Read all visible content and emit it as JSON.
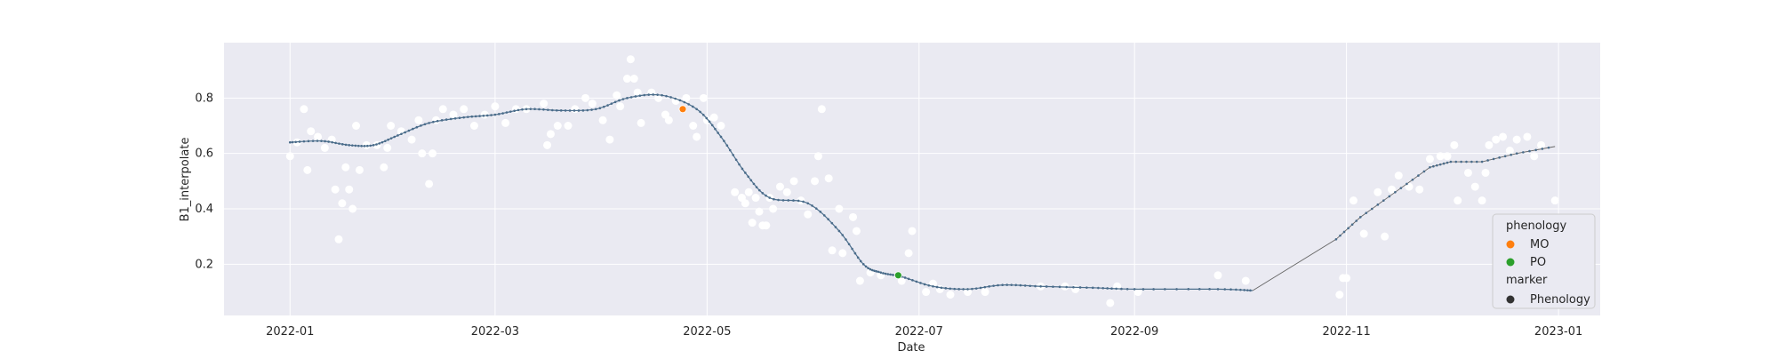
{
  "chart_data": {
    "type": "scatter",
    "title": "",
    "xlabel": "Date",
    "ylabel": "B1_interpolate",
    "xlim": [
      "2021-12-13",
      "2023-01-13"
    ],
    "ylim": [
      0.015,
      1.0
    ],
    "x_ticks": [
      "2022-01-01",
      "2022-03-01",
      "2022-05-01",
      "2022-07-01",
      "2022-09-01",
      "2022-11-01",
      "2023-01-01"
    ],
    "x_tick_labels": [
      "2022-01",
      "2022-03",
      "2022-05",
      "2022-07",
      "2022-09",
      "2022-11",
      "2023-01"
    ],
    "y_ticks": [
      0.2,
      0.4,
      0.6,
      0.8
    ],
    "y_tick_labels": [
      "0.2",
      "0.4",
      "0.6",
      "0.8"
    ],
    "grid": true,
    "legend_position": "bottom-right",
    "colors": {
      "background": "#eaeaf2",
      "grid": "#ffffff",
      "observations": "#ffffff",
      "curve": "#4c6e8c",
      "MO": "#ff7f0e",
      "PO": "#2ca02c",
      "marker": "#333333"
    },
    "observations": [
      [
        "2022-01-01",
        0.59
      ],
      [
        "2022-01-03",
        0.64
      ],
      [
        "2022-01-05",
        0.76
      ],
      [
        "2022-01-06",
        0.54
      ],
      [
        "2022-01-07",
        0.68
      ],
      [
        "2022-01-09",
        0.66
      ],
      [
        "2022-01-11",
        0.62
      ],
      [
        "2022-01-13",
        0.65
      ],
      [
        "2022-01-14",
        0.47
      ],
      [
        "2022-01-15",
        0.29
      ],
      [
        "2022-01-16",
        0.42
      ],
      [
        "2022-01-17",
        0.55
      ],
      [
        "2022-01-18",
        0.47
      ],
      [
        "2022-01-19",
        0.4
      ],
      [
        "2022-01-20",
        0.7
      ],
      [
        "2022-01-21",
        0.54
      ],
      [
        "2022-01-23",
        0.63
      ],
      [
        "2022-01-26",
        0.63
      ],
      [
        "2022-01-28",
        0.55
      ],
      [
        "2022-01-29",
        0.62
      ],
      [
        "2022-01-30",
        0.7
      ],
      [
        "2022-02-02",
        0.68
      ],
      [
        "2022-02-05",
        0.65
      ],
      [
        "2022-02-07",
        0.72
      ],
      [
        "2022-02-08",
        0.6
      ],
      [
        "2022-02-10",
        0.49
      ],
      [
        "2022-02-11",
        0.6
      ],
      [
        "2022-02-12",
        0.72
      ],
      [
        "2022-02-14",
        0.76
      ],
      [
        "2022-02-17",
        0.74
      ],
      [
        "2022-02-20",
        0.76
      ],
      [
        "2022-02-23",
        0.7
      ],
      [
        "2022-02-26",
        0.74
      ],
      [
        "2022-03-01",
        0.77
      ],
      [
        "2022-03-04",
        0.71
      ],
      [
        "2022-03-07",
        0.76
      ],
      [
        "2022-03-10",
        0.76
      ],
      [
        "2022-03-15",
        0.78
      ],
      [
        "2022-03-16",
        0.63
      ],
      [
        "2022-03-17",
        0.67
      ],
      [
        "2022-03-19",
        0.7
      ],
      [
        "2022-03-22",
        0.7
      ],
      [
        "2022-03-24",
        0.76
      ],
      [
        "2022-03-27",
        0.8
      ],
      [
        "2022-03-29",
        0.78
      ],
      [
        "2022-04-01",
        0.72
      ],
      [
        "2022-04-03",
        0.65
      ],
      [
        "2022-04-05",
        0.81
      ],
      [
        "2022-04-06",
        0.77
      ],
      [
        "2022-04-08",
        0.87
      ],
      [
        "2022-04-09",
        0.94
      ],
      [
        "2022-04-10",
        0.87
      ],
      [
        "2022-04-11",
        0.82
      ],
      [
        "2022-04-12",
        0.71
      ],
      [
        "2022-04-15",
        0.82
      ],
      [
        "2022-04-17",
        0.8
      ],
      [
        "2022-04-19",
        0.74
      ],
      [
        "2022-04-20",
        0.72
      ],
      [
        "2022-04-22",
        0.79
      ],
      [
        "2022-04-25",
        0.8
      ],
      [
        "2022-04-27",
        0.7
      ],
      [
        "2022-04-28",
        0.66
      ],
      [
        "2022-04-30",
        0.8
      ],
      [
        "2022-05-01",
        0.72
      ],
      [
        "2022-05-03",
        0.73
      ],
      [
        "2022-05-05",
        0.7
      ],
      [
        "2022-05-09",
        0.46
      ],
      [
        "2022-05-11",
        0.44
      ],
      [
        "2022-05-12",
        0.42
      ],
      [
        "2022-05-13",
        0.46
      ],
      [
        "2022-05-14",
        0.35
      ],
      [
        "2022-05-15",
        0.44
      ],
      [
        "2022-05-16",
        0.39
      ],
      [
        "2022-05-17",
        0.34
      ],
      [
        "2022-05-18",
        0.34
      ],
      [
        "2022-05-19",
        0.44
      ],
      [
        "2022-05-20",
        0.4
      ],
      [
        "2022-05-22",
        0.48
      ],
      [
        "2022-05-24",
        0.46
      ],
      [
        "2022-05-26",
        0.5
      ],
      [
        "2022-05-28",
        0.43
      ],
      [
        "2022-05-30",
        0.38
      ],
      [
        "2022-06-01",
        0.5
      ],
      [
        "2022-06-02",
        0.59
      ],
      [
        "2022-06-03",
        0.76
      ],
      [
        "2022-06-05",
        0.51
      ],
      [
        "2022-06-06",
        0.25
      ],
      [
        "2022-06-08",
        0.4
      ],
      [
        "2022-06-09",
        0.24
      ],
      [
        "2022-06-12",
        0.37
      ],
      [
        "2022-06-13",
        0.32
      ],
      [
        "2022-06-14",
        0.14
      ],
      [
        "2022-06-17",
        0.17
      ],
      [
        "2022-06-20",
        0.16
      ],
      [
        "2022-06-26",
        0.14
      ],
      [
        "2022-06-28",
        0.24
      ],
      [
        "2022-06-29",
        0.32
      ],
      [
        "2022-07-03",
        0.1
      ],
      [
        "2022-07-05",
        0.13
      ],
      [
        "2022-07-07",
        0.11
      ],
      [
        "2022-07-10",
        0.09
      ],
      [
        "2022-07-15",
        0.1
      ],
      [
        "2022-07-20",
        0.1
      ],
      [
        "2022-08-05",
        0.12
      ],
      [
        "2022-08-12",
        0.12
      ],
      [
        "2022-08-15",
        0.11
      ],
      [
        "2022-08-25",
        0.06
      ],
      [
        "2022-08-27",
        0.12
      ],
      [
        "2022-09-02",
        0.1
      ],
      [
        "2022-09-25",
        0.16
      ],
      [
        "2022-10-03",
        0.14
      ],
      [
        "2022-10-30",
        0.09
      ],
      [
        "2022-10-31",
        0.15
      ],
      [
        "2022-11-01",
        0.15
      ],
      [
        "2022-11-03",
        0.43
      ],
      [
        "2022-11-06",
        0.31
      ],
      [
        "2022-11-10",
        0.46
      ],
      [
        "2022-11-12",
        0.3
      ],
      [
        "2022-11-14",
        0.47
      ],
      [
        "2022-11-16",
        0.52
      ],
      [
        "2022-11-19",
        0.48
      ],
      [
        "2022-11-22",
        0.47
      ],
      [
        "2022-11-25",
        0.58
      ],
      [
        "2022-11-28",
        0.59
      ],
      [
        "2022-11-30",
        0.59
      ],
      [
        "2022-12-02",
        0.63
      ],
      [
        "2022-12-03",
        0.43
      ],
      [
        "2022-12-06",
        0.53
      ],
      [
        "2022-12-08",
        0.48
      ],
      [
        "2022-12-10",
        0.43
      ],
      [
        "2022-12-11",
        0.53
      ],
      [
        "2022-12-12",
        0.63
      ],
      [
        "2022-12-14",
        0.65
      ],
      [
        "2022-12-16",
        0.66
      ],
      [
        "2022-12-18",
        0.61
      ],
      [
        "2022-12-20",
        0.65
      ],
      [
        "2022-12-23",
        0.66
      ],
      [
        "2022-12-25",
        0.59
      ],
      [
        "2022-12-27",
        0.63
      ],
      [
        "2022-12-31",
        0.43
      ]
    ],
    "smoothed_knots": [
      [
        "2022-01-01",
        0.64
      ],
      [
        "2022-01-10",
        0.645
      ],
      [
        "2022-01-18",
        0.63
      ],
      [
        "2022-01-25",
        0.63
      ],
      [
        "2022-02-01",
        0.665
      ],
      [
        "2022-02-10",
        0.71
      ],
      [
        "2022-02-20",
        0.73
      ],
      [
        "2022-03-01",
        0.74
      ],
      [
        "2022-03-10",
        0.76
      ],
      [
        "2022-03-20",
        0.755
      ],
      [
        "2022-03-30",
        0.76
      ],
      [
        "2022-04-08",
        0.8
      ],
      [
        "2022-04-18",
        0.81
      ],
      [
        "2022-04-28",
        0.76
      ],
      [
        "2022-05-05",
        0.66
      ],
      [
        "2022-05-12",
        0.53
      ],
      [
        "2022-05-19",
        0.44
      ],
      [
        "2022-05-30",
        0.42
      ],
      [
        "2022-06-08",
        0.32
      ],
      [
        "2022-06-15",
        0.2
      ],
      [
        "2022-06-20",
        0.17
      ],
      [
        "2022-06-26",
        0.155
      ],
      [
        "2022-07-05",
        0.12
      ],
      [
        "2022-07-15",
        0.11
      ],
      [
        "2022-07-25",
        0.125
      ],
      [
        "2022-08-05",
        0.12
      ],
      [
        "2022-08-20",
        0.115
      ],
      [
        "2022-09-01",
        0.11
      ],
      [
        "2022-09-25",
        0.11
      ],
      [
        "2022-10-05",
        0.105
      ]
    ],
    "linear_gap": [
      [
        "2022-10-05",
        0.105
      ],
      [
        "2022-10-29",
        0.29
      ],
      [
        "2022-11-05",
        0.37
      ],
      [
        "2022-11-15",
        0.46
      ],
      [
        "2022-11-25",
        0.55
      ],
      [
        "2022-12-01",
        0.57
      ],
      [
        "2022-12-10",
        0.57
      ],
      [
        "2022-12-20",
        0.6
      ],
      [
        "2022-12-31",
        0.625
      ]
    ],
    "phenology_points": [
      {
        "label": "MO",
        "date": "2022-04-24",
        "value": 0.76
      },
      {
        "label": "PO",
        "date": "2022-06-25",
        "value": 0.16
      }
    ]
  },
  "legend": {
    "title": "phenology",
    "items": [
      {
        "label": "MO",
        "color": "#ff7f0e"
      },
      {
        "label": "PO",
        "color": "#2ca02c"
      }
    ],
    "marker_title": "marker",
    "marker_item": {
      "label": "Phenology",
      "color": "#333333"
    }
  }
}
